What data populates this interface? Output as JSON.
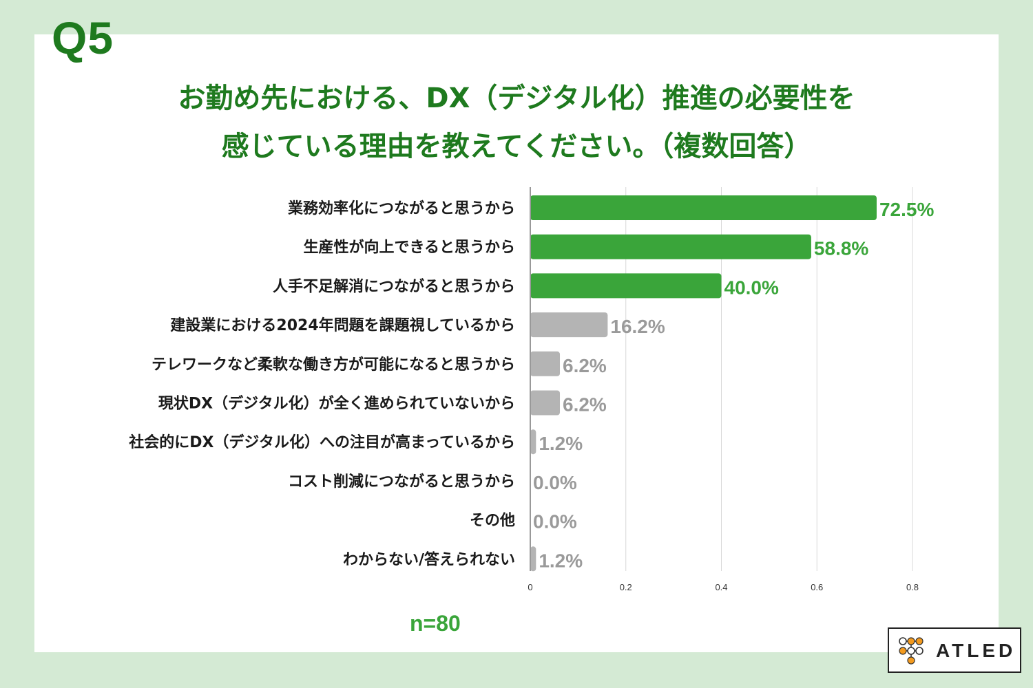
{
  "question_number": "Q5",
  "title_lines": [
    "お勤め先における、DX（デジタル化）推進の必要性を",
    "感じている理由を教えてください。（複数回答）"
  ],
  "sample_size": "n=80",
  "logo_text": "ATLED",
  "colors": {
    "background": "#d4ead4",
    "title": "#1e7a1e",
    "highlight_bar": "#3aa53a",
    "muted_bar": "#b4b4b4",
    "muted_label": "#9a9a9a"
  },
  "chart_data": {
    "type": "bar",
    "orientation": "horizontal",
    "categories": [
      "業務効率化につながると思うから",
      "生産性が向上できると思うから",
      "人手不足解消につながると思うから",
      "建設業における2024年問題を課題視しているから",
      "テレワークなど柔軟な働き方が可能になると思うから",
      "現状DX（デジタル化）が全く進められていないから",
      "社会的にDX（デジタル化）への注目が高まっているから",
      "コスト削減につながると思うから",
      "その他",
      "わからない/答えられない"
    ],
    "values": [
      0.725,
      0.588,
      0.4,
      0.162,
      0.062,
      0.062,
      0.012,
      0.0,
      0.0,
      0.012
    ],
    "value_labels": [
      "72.5%",
      "58.8%",
      "40.0%",
      "16.2%",
      "6.2%",
      "6.2%",
      "1.2%",
      "0.0%",
      "0.0%",
      "1.2%"
    ],
    "highlighted": [
      true,
      true,
      true,
      false,
      false,
      false,
      false,
      false,
      false,
      false
    ],
    "xlim": [
      0,
      0.8
    ],
    "xticks": [
      0,
      0.2,
      0.4,
      0.6,
      0.8
    ],
    "xtick_labels": [
      "0",
      "0.2",
      "0.4",
      "0.6",
      "0.8"
    ],
    "grid": true
  }
}
